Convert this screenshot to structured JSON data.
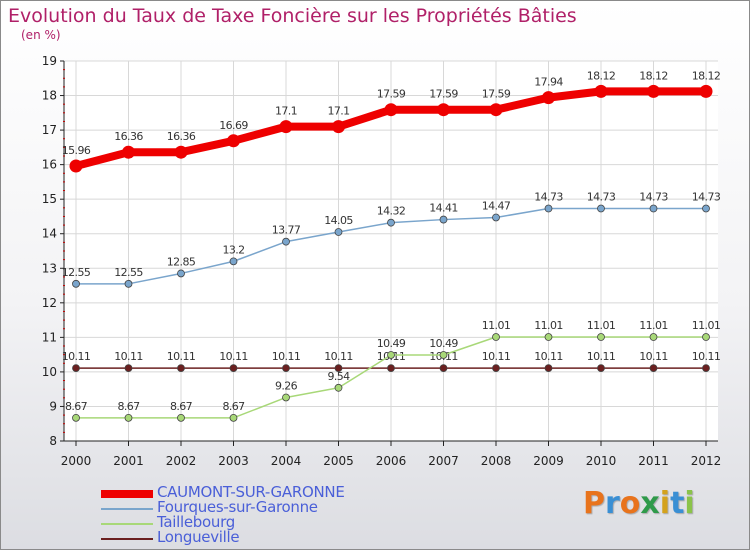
{
  "header": {
    "title": "Evolution du Taux de Taxe Foncière sur les Propriétés Bâties",
    "unit": "(en %)"
  },
  "brand": {
    "letters": [
      "P",
      "r",
      "o",
      "x",
      "i",
      "t",
      "i"
    ],
    "colors": [
      "#e8731c",
      "#3a8fd4",
      "#e8731c",
      "#2f9a4a",
      "#d4a21c",
      "#3a8fd4",
      "#8bc34a"
    ]
  },
  "chart_data": {
    "type": "line",
    "x": [
      "2000",
      "2001",
      "2002",
      "2003",
      "2004",
      "2005",
      "2006",
      "2007",
      "2008",
      "2009",
      "2010",
      "2011",
      "2012"
    ],
    "ylim": [
      8,
      19
    ],
    "yticks": [
      "8",
      "9",
      "10",
      "11",
      "12",
      "13",
      "14",
      "15",
      "16",
      "17",
      "18",
      "19"
    ],
    "grid": true,
    "legend_position": "bottom-left",
    "series": [
      {
        "name": "Longueville",
        "color": "#6b2020",
        "line_width": 1.5,
        "values": [
          10.11,
          10.11,
          10.11,
          10.11,
          10.11,
          10.11,
          10.11,
          10.11,
          10.11,
          10.11,
          10.11,
          10.11,
          10.11
        ],
        "labels": [
          "10.11",
          "10.11",
          "10.11",
          "10.11",
          "10.11",
          "10.11",
          "10.11",
          "10.11",
          "10.11",
          "10.11",
          "10.11",
          "10.11",
          "10.11"
        ]
      },
      {
        "name": "Taillebourg",
        "color": "#a8d878",
        "line_width": 1.5,
        "values": [
          8.67,
          8.67,
          8.67,
          8.67,
          9.26,
          9.54,
          10.49,
          10.49,
          11.01,
          11.01,
          11.01,
          11.01,
          11.01
        ],
        "labels": [
          "8.67",
          "8.67",
          "8.67",
          "8.67",
          "9.26",
          "9.54",
          "10.49",
          "10.49",
          "11.01",
          "11.01",
          "11.01",
          "11.01",
          "11.01"
        ]
      },
      {
        "name": "Fourques-sur-Garonne",
        "color": "#7aa5cc",
        "line_width": 1.5,
        "values": [
          12.55,
          12.55,
          12.85,
          13.2,
          13.77,
          14.05,
          14.32,
          14.41,
          14.47,
          14.73,
          14.73,
          14.73,
          14.73
        ],
        "labels": [
          "12.55",
          "12.55",
          "12.85",
          "13.2",
          "13.77",
          "14.05",
          "14.32",
          "14.41",
          "14.47",
          "14.73",
          "14.73",
          "14.73",
          "14.73"
        ]
      },
      {
        "name": "CAUMONT-SUR-GARONNE",
        "color": "#ee0000",
        "line_width": 8,
        "values": [
          15.96,
          16.36,
          16.36,
          16.69,
          17.1,
          17.1,
          17.59,
          17.59,
          17.59,
          17.94,
          18.12,
          18.12,
          18.12
        ],
        "labels": [
          "15.96",
          "16.36",
          "16.36",
          "16.69",
          "17.1",
          "17.1",
          "17.59",
          "17.59",
          "17.59",
          "17.94",
          "18.12",
          "18.12",
          "18.12"
        ]
      }
    ]
  },
  "legend": {
    "items": [
      {
        "name": "CAUMONT-SUR-GARONNE",
        "color": "#ee0000",
        "text_color": "#4a5fd8",
        "thickness": "heavy"
      },
      {
        "name": "Fourques-sur-Garonne",
        "color": "#7aa5cc",
        "text_color": "#4a5fd8",
        "thickness": "thin"
      },
      {
        "name": "Taillebourg",
        "color": "#a8d878",
        "text_color": "#4a5fd8",
        "thickness": "thin"
      },
      {
        "name": "Longueville",
        "color": "#6b2020",
        "text_color": "#4a5fd8",
        "thickness": "thin"
      }
    ]
  }
}
